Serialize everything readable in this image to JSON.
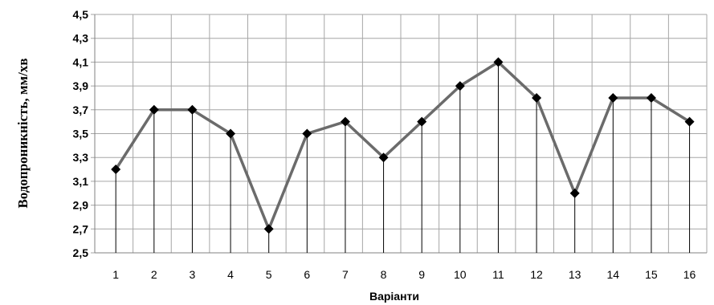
{
  "chart_data": {
    "type": "line",
    "title": "",
    "xlabel": "Варіанти",
    "ylabel": "Водопроникність, мм/хв",
    "categories": [
      "1",
      "2",
      "3",
      "4",
      "5",
      "6",
      "7",
      "8",
      "9",
      "10",
      "11",
      "12",
      "13",
      "14",
      "15",
      "16"
    ],
    "series": [
      {
        "values": [
          3.2,
          3.7,
          3.7,
          3.5,
          2.7,
          3.5,
          3.6,
          3.3,
          3.6,
          3.9,
          4.1,
          3.8,
          3.0,
          3.8,
          3.8,
          3.6
        ]
      }
    ],
    "ylim": [
      2.5,
      4.5
    ],
    "yticks": [
      "2,5",
      "2,7",
      "2,9",
      "3,1",
      "3,3",
      "3,5",
      "3,7",
      "3,9",
      "4,1",
      "4,3",
      "4,5"
    ],
    "grid": true,
    "drop_lines": true,
    "marker": "diamond",
    "colors": {
      "line": "#6b6b6b",
      "marker": "#000000",
      "grid": "#a6a6a6",
      "drop": "#000000"
    }
  }
}
